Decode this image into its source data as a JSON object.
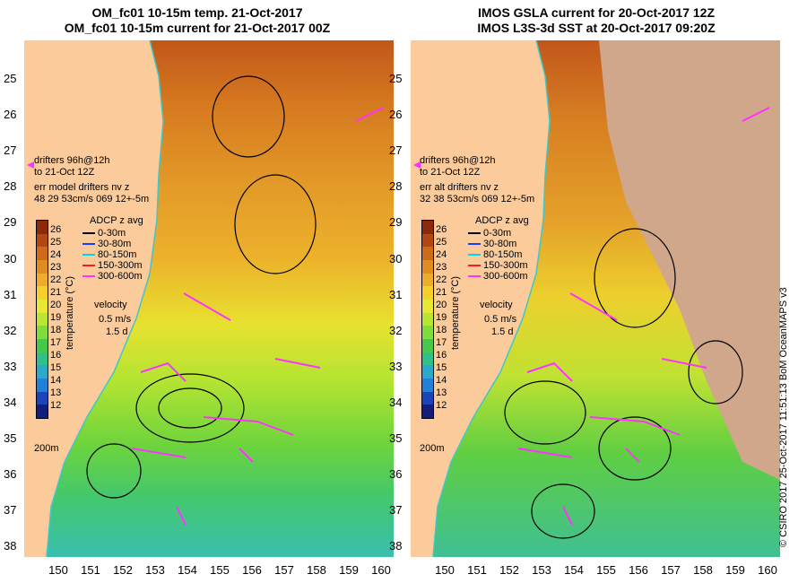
{
  "left": {
    "title1": "OM_fc01 10-15m temp. 21-Oct-2017",
    "title2": "OM_fc01 10-15m current for 21-Oct-2017 00Z",
    "drifters1": "drifters 96h@12h",
    "drifters2": "to 21-Oct 12Z",
    "err1": "err model drifters nv z",
    "err2": "48 29 53cm/s 069 12+-5m"
  },
  "right": {
    "title1": "IMOS GSLA current for 20-Oct-2017 12Z",
    "title2": "IMOS L3S-3d SST at 20-Oct-2017 09:20Z",
    "drifters1": "drifters 96h@12h",
    "drifters2": "to 21-Oct 12Z",
    "err1": "err alt drifters nv z",
    "err2": "32 38 53cm/s 069 12+-5m"
  },
  "y_ticks": [
    "25",
    "26",
    "27",
    "28",
    "29",
    "30",
    "31",
    "32",
    "33",
    "34",
    "35",
    "36",
    "37",
    "38"
  ],
  "x_ticks": [
    "150",
    "151",
    "152",
    "153",
    "154",
    "155",
    "156",
    "157",
    "158",
    "159",
    "160"
  ],
  "colorbar": {
    "title": "temperature (°C)",
    "labels": [
      "26",
      "25",
      "24",
      "23",
      "22",
      "21",
      "20",
      "19",
      "18",
      "17",
      "16",
      "15",
      "14",
      "13",
      "12"
    ],
    "colors": [
      "#8a2a0a",
      "#b34712",
      "#cf6a1a",
      "#e08c22",
      "#ecae2a",
      "#f3d02e",
      "#e7e832",
      "#b8e632",
      "#7fdc3a",
      "#48c84a",
      "#2fbf8a",
      "#2aaac8",
      "#2280d8",
      "#1a44b8",
      "#141e7a"
    ]
  },
  "legend": {
    "title": "ADCP z avg",
    "items": [
      {
        "label": "0-30m",
        "color": "#000000"
      },
      {
        "label": "30-80m",
        "color": "#1a3cff"
      },
      {
        "label": "80-150m",
        "color": "#00d8e8"
      },
      {
        "label": "150-300m",
        "color": "#ff1a1a"
      },
      {
        "label": "300-600m",
        "color": "#ff33ff"
      }
    ]
  },
  "velocity": {
    "l1": "velocity",
    "l2": "0.5 m/s",
    "l3": "1.5 d"
  },
  "depth_label": "200m",
  "credit": "© CSIRO 2017  25-Oct-2017 11:51:13 BoM OceanMAPS v3",
  "colors": {
    "land": "#fbcb9b",
    "cloud": "#d0a78a",
    "coast": "#3fc8c8",
    "drifter": "#ff33ff"
  }
}
